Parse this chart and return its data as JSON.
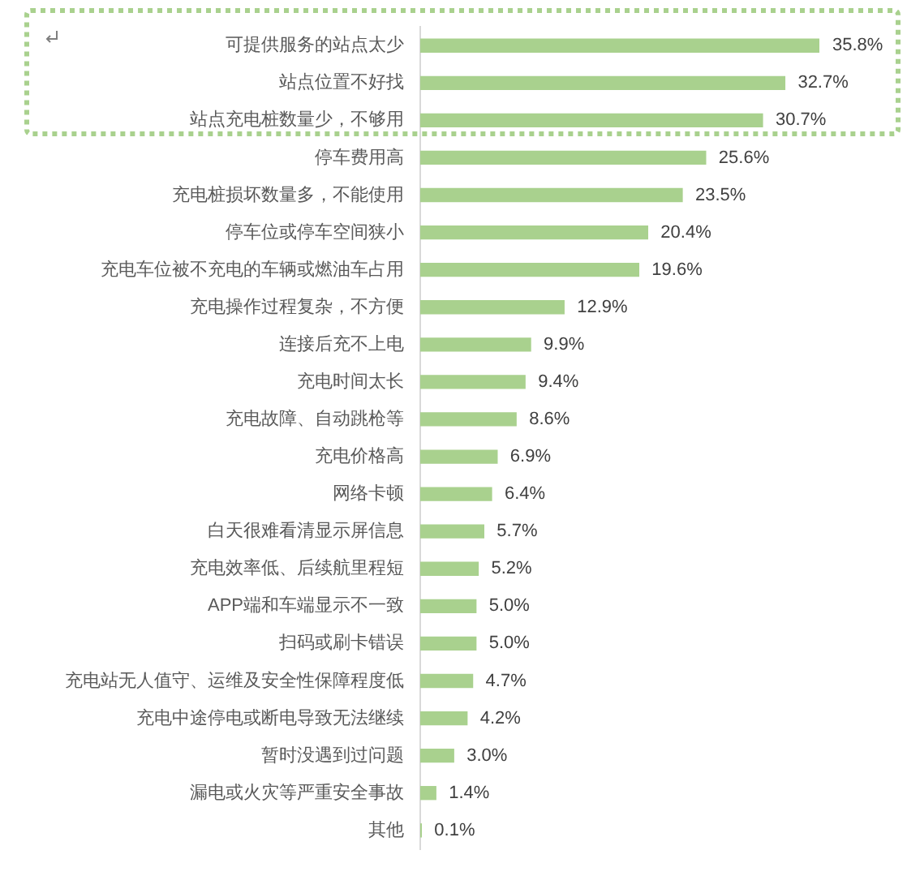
{
  "chart_data": {
    "type": "bar",
    "orientation": "horizontal",
    "categories": [
      "可提供服务的站点太少",
      "站点位置不好找",
      "站点充电桩数量少，不够用",
      "停车费用高",
      "充电桩损坏数量多，不能使用",
      "停车位或停车空间狭小",
      "充电车位被不充电的车辆或燃油车占用",
      "充电操作过程复杂，不方便",
      "连接后充不上电",
      "充电时间太长",
      "充电故障、自动跳枪等",
      "充电价格高",
      "网络卡顿",
      "白天很难看清显示屏信息",
      "充电效率低、后续航里程短",
      "APP端和车端显示不一致",
      "扫码或刷卡错误",
      "充电站无人值守、运维及安全性保障程度低",
      "充电中途停电或断电导致无法继续",
      "暂时没遇到过问题",
      "漏电或火灾等严重安全事故",
      "其他"
    ],
    "values": [
      35.8,
      32.7,
      30.7,
      25.6,
      23.5,
      20.4,
      19.6,
      12.9,
      9.9,
      9.4,
      8.6,
      6.9,
      6.4,
      5.7,
      5.2,
      5.0,
      5.0,
      4.7,
      4.2,
      3.0,
      1.4,
      0.1
    ],
    "color": "#a9d18e",
    "value_labels": [
      "35.8%",
      "32.7%",
      "30.7%",
      "25.6%",
      "23.5%",
      "20.4%",
      "19.6%",
      "12.9%",
      "9.9%",
      "9.4%",
      "8.6%",
      "6.9%",
      "6.4%",
      "5.7%",
      "5.2%",
      "5.0%",
      "5.0%",
      "4.7%",
      "4.2%",
      "3.0%",
      "1.4%",
      "0.1%"
    ]
  }
}
